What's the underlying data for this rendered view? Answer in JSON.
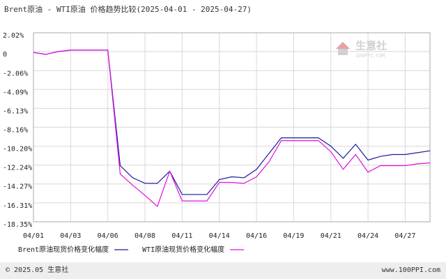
{
  "chart_data": {
    "type": "line",
    "title": "Brent原油 - WTI原油 价格趋势比较(2025-04-01 - 2025-04-27)",
    "categories": [
      "04/01",
      null,
      null,
      "04/03",
      null,
      null,
      "04/06",
      null,
      null,
      "04/08",
      null,
      null,
      "04/11",
      null,
      null,
      "04/14",
      null,
      null,
      "04/16",
      null,
      null,
      "04/19",
      null,
      null,
      "04/21",
      null,
      null,
      "04/24",
      null,
      null,
      "04/27",
      null,
      null
    ],
    "series": [
      {
        "name": "Brent原油现货价格变化幅度",
        "color": "#1a1aa0",
        "values": [
          -0.1,
          -0.3,
          0.0,
          0.15,
          0.15,
          0.15,
          0.15,
          -12.3,
          -13.6,
          -14.2,
          -14.2,
          -12.9,
          -15.4,
          -15.4,
          -15.4,
          -13.8,
          -13.5,
          -13.6,
          -12.7,
          -11.0,
          -9.3,
          -9.3,
          -9.3,
          -9.3,
          -10.2,
          -11.5,
          -10.0,
          -11.7,
          -11.3,
          -11.1,
          -11.1,
          -10.9,
          -10.7
        ]
      },
      {
        "name": "WTI原油现货价格变化幅度",
        "color": "#e010e0",
        "values": [
          -0.1,
          -0.3,
          0.0,
          0.15,
          0.15,
          0.15,
          0.15,
          -13.2,
          -14.4,
          -15.5,
          -16.7,
          -12.9,
          -16.1,
          -16.1,
          -16.1,
          -14.1,
          -14.1,
          -14.2,
          -13.5,
          -11.9,
          -9.6,
          -9.6,
          -9.6,
          -9.6,
          -10.8,
          -12.7,
          -11.1,
          -13.0,
          -12.3,
          -12.3,
          -12.3,
          -12.1,
          -12.0
        ]
      }
    ],
    "ylim": [
      -18.35,
      2.02
    ],
    "yticks": [
      {
        "value": 2.02,
        "label": "2.02%"
      },
      0,
      {
        "value": -2.06,
        "label": "-2.06%"
      },
      {
        "value": -4.09,
        "label": "-4.09%"
      },
      {
        "value": -6.13,
        "label": "-6.13%"
      },
      {
        "value": -8.16,
        "label": "-8.16%"
      },
      {
        "value": -10.2,
        "label": "-10.20%"
      },
      {
        "value": -12.24,
        "label": "-12.24%"
      },
      {
        "value": -14.27,
        "label": "-14.27%"
      },
      {
        "value": -16.31,
        "label": "-16.31%"
      },
      {
        "value": -18.35,
        "label": "-18.35%"
      }
    ],
    "grid": true,
    "watermark": "生意社",
    "watermark_sub": "100PPI.COM",
    "footer_left": "© 2025.05 生意社",
    "footer_right": "www.100PPI.com"
  }
}
